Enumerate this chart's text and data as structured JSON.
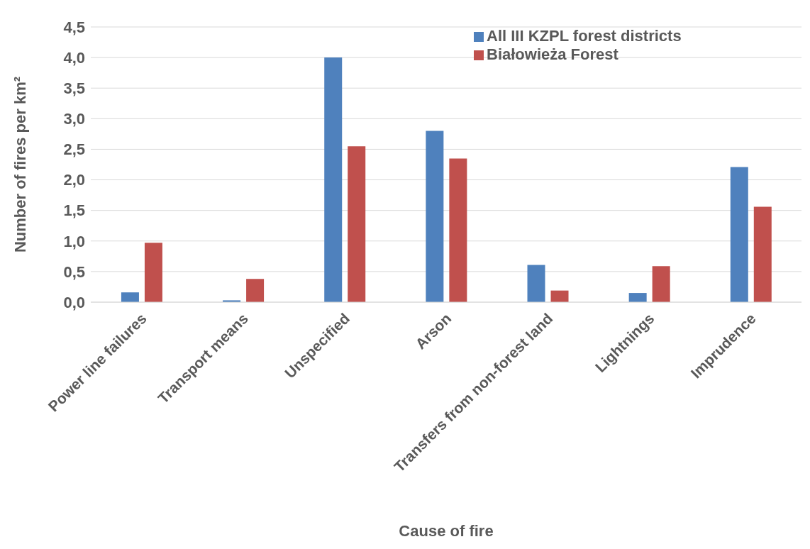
{
  "chart_data": {
    "type": "bar",
    "xlabel": "Cause of fire",
    "ylabel": "Number of fires per km²",
    "categories": [
      "Power line failures",
      "Transport means",
      "Unspecified",
      "Arson",
      "Transfers from non-forest land",
      "Lightnings",
      "Imprudence"
    ],
    "series": [
      {
        "name": "All III KZPL forest districts",
        "color": "#4f81bd",
        "values": [
          0.16,
          0.03,
          4.0,
          2.8,
          0.61,
          0.15,
          2.21
        ]
      },
      {
        "name": "Białowieża Forest",
        "color": "#c0504d",
        "values": [
          0.97,
          0.38,
          2.55,
          2.35,
          0.19,
          0.59,
          1.56
        ]
      }
    ],
    "ylim": [
      0,
      4.5
    ],
    "yticks": [
      {
        "value": 0,
        "label": "0,0"
      },
      {
        "value": 0.5,
        "label": "0,5"
      },
      {
        "value": 1,
        "label": "1,0"
      },
      {
        "value": 1.5,
        "label": "1,5"
      },
      {
        "value": 2,
        "label": "2,0"
      },
      {
        "value": 2.5,
        "label": "2,5"
      },
      {
        "value": 3,
        "label": "3,0"
      },
      {
        "value": 3.5,
        "label": "3,5"
      },
      {
        "value": 4,
        "label": "4,0"
      },
      {
        "value": 4.5,
        "label": "4,5"
      }
    ],
    "grid": "y",
    "legend": "top right"
  }
}
